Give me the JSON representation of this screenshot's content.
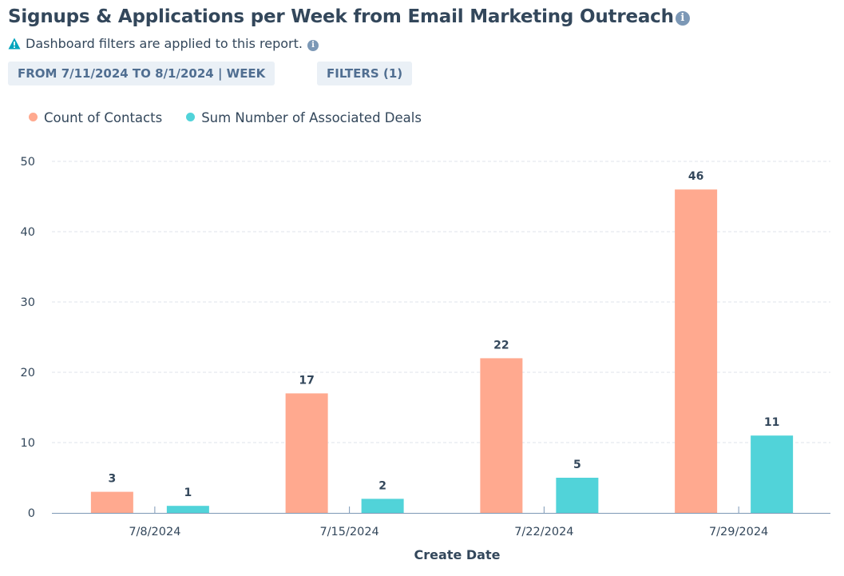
{
  "header": {
    "title": "Signups & Applications per Week from Email Marketing Outreach",
    "info_icon": "info-icon",
    "notice": "Dashboard filters are applied to this report.",
    "notice_icon": "warning-icon"
  },
  "filters": {
    "date_range": "FROM 7/11/2024 TO 8/1/2024 | WEEK",
    "filters_label": "FILTERS (1)"
  },
  "chart_data": {
    "type": "bar",
    "categories": [
      "7/8/2024",
      "7/15/2024",
      "7/22/2024",
      "7/29/2024"
    ],
    "series": [
      {
        "name": "Count of Contacts",
        "values": [
          3,
          17,
          22,
          46
        ],
        "color": "#ffa98f"
      },
      {
        "name": "Sum Number of Associated Deals",
        "values": [
          1,
          2,
          5,
          11
        ],
        "color": "#51d3d9"
      }
    ],
    "xlabel": "Create Date",
    "ylabel": "",
    "ylim": [
      0,
      50
    ],
    "yticks": [
      0,
      10,
      20,
      30,
      40,
      50
    ],
    "grid": true,
    "legend_position": "top-left"
  }
}
